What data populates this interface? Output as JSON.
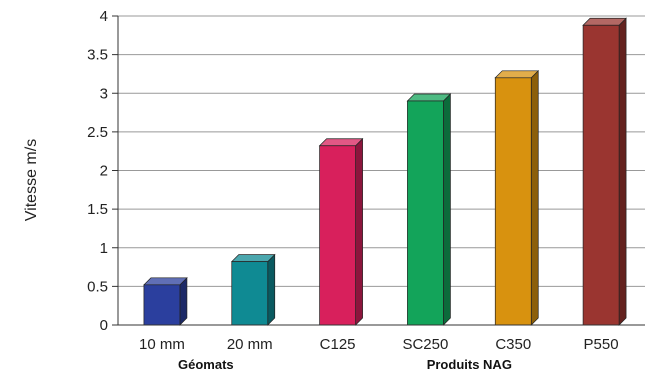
{
  "chart_data": {
    "type": "bar",
    "ylabel": "Vitesse m/s",
    "ylim": [
      0,
      4
    ],
    "yticks": [
      "0",
      "0.5",
      "1",
      "1.5",
      "2",
      "2.5",
      "3",
      "3.5",
      "4"
    ],
    "grid": true,
    "categories": [
      "10 mm",
      "20 mm",
      "C125",
      "SC250",
      "C350",
      "P550"
    ],
    "values": [
      0.52,
      0.82,
      2.32,
      2.9,
      3.2,
      3.88
    ],
    "colors": [
      "#2b3f9e",
      "#0f8a93",
      "#d8205c",
      "#13a45a",
      "#d8920f",
      "#9a3530"
    ],
    "groups": [
      {
        "label": "Géomats",
        "categories": [
          "10 mm",
          "20 mm"
        ]
      },
      {
        "label": "Produits NAG",
        "categories": [
          "C125",
          "SC250",
          "C350",
          "P550"
        ]
      }
    ]
  }
}
